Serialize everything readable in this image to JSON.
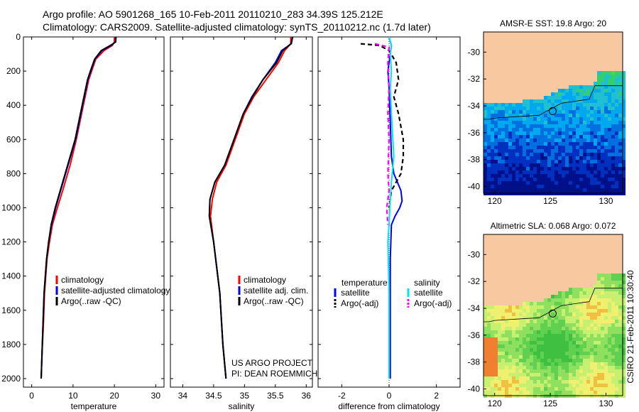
{
  "header": {
    "line1": "Argo profile: AO 5901268_165 10-Feb-2011 20110210_283 34.39S 125.212E",
    "line2": "Climatology: CARS2009. Satellite-adjusted climatology: synTS_20110212.nc (1.7d later)"
  },
  "side_label": "CSIRO 21-Feb-2011 10:30:40",
  "credit": {
    "line1": "US ARGO PROJECT",
    "line2": "PI: DEAN ROEMMICH"
  },
  "colors": {
    "climatology": "#ff0000",
    "satellite": "#0000ff",
    "argo": "#000000",
    "cyan": "#00e5ee",
    "magenta": "#ff00ff",
    "land": "#f8c8a0"
  },
  "chart_data": [
    {
      "id": "temperature",
      "type": "line",
      "xlabel": "temperature",
      "xlim": [
        -2,
        32
      ],
      "ylim": [
        0,
        2050
      ],
      "xticks": [
        0,
        10,
        20,
        30
      ],
      "yticks": [
        0,
        200,
        400,
        600,
        800,
        1000,
        1200,
        1400,
        1600,
        1800,
        2000
      ],
      "legend": [
        "climatology",
        "satellite-adjusted climatology",
        "Argo(..raw -QC)"
      ],
      "series": [
        {
          "name": "climatology",
          "color": "#ff0000",
          "x": [
            20.0,
            20.0,
            19.5,
            17.5,
            15.5,
            14.5,
            13.8,
            12.5,
            10.8,
            9.3,
            7.5,
            6.2,
            5.0,
            4.3,
            3.7,
            3.1,
            2.8,
            2.5,
            2.3
          ],
          "depth": [
            0,
            30,
            50,
            80,
            130,
            200,
            250,
            400,
            600,
            750,
            900,
            1000,
            1100,
            1200,
            1300,
            1500,
            1700,
            1850,
            2000
          ]
        },
        {
          "name": "satellite-adjusted climatology",
          "color": "#0000ff",
          "x": [
            20.3,
            20.2,
            19.2,
            17.0,
            15.3,
            14.3,
            13.6,
            12.3,
            10.6,
            8.8,
            7.0,
            5.8,
            4.8,
            4.1,
            3.6,
            3.0,
            2.7,
            2.5,
            2.3
          ],
          "depth": [
            0,
            30,
            50,
            80,
            130,
            200,
            250,
            400,
            600,
            750,
            900,
            1000,
            1100,
            1200,
            1300,
            1500,
            1700,
            1850,
            2000
          ]
        },
        {
          "name": "Argo(..raw -QC)",
          "color": "#000000",
          "x": [
            20.4,
            20.3,
            19.0,
            16.8,
            15.2,
            14.2,
            13.5,
            12.2,
            10.5,
            8.7,
            6.9,
            5.7,
            4.7,
            4.1,
            3.6,
            3.0,
            2.7,
            2.5,
            2.3
          ],
          "depth": [
            0,
            30,
            50,
            80,
            130,
            200,
            250,
            400,
            600,
            750,
            900,
            1000,
            1100,
            1200,
            1300,
            1500,
            1700,
            1850,
            2000
          ]
        }
      ]
    },
    {
      "id": "salinity",
      "type": "line",
      "xlabel": "salinity",
      "xlim": [
        33.8,
        36.1
      ],
      "ylim": [
        0,
        2050
      ],
      "xticks": [
        34,
        34.5,
        35,
        35.5,
        36
      ],
      "yticks": [
        0,
        200,
        400,
        600,
        800,
        1000,
        1200,
        1400,
        1600,
        1800,
        2000
      ],
      "legend": [
        "climatology",
        "satellite adj. clim.",
        "Argo(..raw -QC)"
      ],
      "series": [
        {
          "name": "climatology",
          "color": "#ff0000",
          "x": [
            35.75,
            35.75,
            35.65,
            35.55,
            35.35,
            35.15,
            35.0,
            34.85,
            34.7,
            34.55,
            34.48,
            34.45,
            34.5,
            34.6,
            34.65,
            34.7
          ],
          "depth": [
            0,
            40,
            80,
            150,
            250,
            350,
            450,
            600,
            750,
            850,
            950,
            1050,
            1200,
            1500,
            1800,
            2000
          ]
        },
        {
          "name": "satellite adj. clim.",
          "color": "#0000ff",
          "x": [
            35.78,
            35.76,
            35.6,
            35.5,
            35.3,
            35.12,
            34.98,
            34.83,
            34.68,
            34.52,
            34.44,
            34.43,
            34.5,
            34.6,
            34.65,
            34.7
          ],
          "depth": [
            0,
            40,
            80,
            150,
            250,
            350,
            450,
            600,
            750,
            850,
            950,
            1050,
            1200,
            1500,
            1800,
            2000
          ]
        },
        {
          "name": "Argo(..raw -QC)",
          "color": "#000000",
          "x": [
            35.78,
            35.75,
            35.62,
            35.52,
            35.3,
            35.13,
            34.98,
            34.83,
            34.68,
            34.52,
            34.44,
            34.43,
            34.5,
            34.6,
            34.65,
            34.7
          ],
          "depth": [
            0,
            40,
            80,
            150,
            250,
            350,
            450,
            600,
            750,
            850,
            950,
            1050,
            1200,
            1500,
            1800,
            2000
          ]
        }
      ]
    },
    {
      "id": "difference",
      "type": "line",
      "xlabel": "difference from climatology",
      "xlim": [
        -3,
        3
      ],
      "ylim": [
        0,
        2050
      ],
      "xticks": [
        -2,
        0,
        2
      ],
      "yticks": [
        0,
        200,
        400,
        600,
        800,
        1000,
        1200,
        1400,
        1600,
        1800,
        2000
      ],
      "legend_headers": [
        "temperature",
        "salinity"
      ],
      "legend": [
        "satellite",
        "Argo(-adj)",
        "satellite",
        "Argo(-adj)"
      ],
      "series": [
        {
          "name": "temperature satellite",
          "color": "#0000ff",
          "x": [
            0.0,
            0.1,
            0.05,
            -0.05,
            0.0,
            0.05,
            0.1,
            0.2,
            0.35,
            0.5,
            0.55,
            0.45,
            0.25,
            0.1,
            0.05,
            0.05,
            0.05
          ],
          "depth": [
            0,
            50,
            100,
            200,
            300,
            500,
            700,
            800,
            850,
            900,
            960,
            1000,
            1050,
            1100,
            1300,
            1700,
            2000
          ]
        },
        {
          "name": "temperature Argo(-adj)",
          "color": "#000000",
          "dashed": true,
          "x": [
            -1.2,
            -0.4,
            0.0,
            0.3,
            0.4,
            0.2,
            0.4,
            0.6,
            0.6,
            0.5,
            0.3,
            0.1,
            0.05,
            0.0
          ],
          "depth": [
            40,
            50,
            80,
            150,
            250,
            350,
            450,
            600,
            700,
            800,
            850,
            900,
            950,
            1000
          ]
        },
        {
          "name": "salinity satellite",
          "color": "#00e5ee",
          "x": [
            0.0,
            0.1,
            0.05,
            0.1,
            0.05,
            0.1,
            0.2,
            0.1,
            0.05,
            0.0,
            -0.05,
            0.0,
            0.0,
            0.0
          ],
          "depth": [
            0,
            50,
            100,
            200,
            300,
            450,
            700,
            850,
            950,
            1100,
            1200,
            1500,
            1800,
            2000
          ]
        },
        {
          "name": "salinity Argo(-adj)",
          "color": "#ff00ff",
          "dashed": true,
          "x": [
            -0.6,
            0.0,
            -0.05,
            0.0,
            -0.05,
            0.0,
            -0.05,
            0.0,
            -0.1,
            -0.05
          ],
          "depth": [
            40,
            60,
            150,
            300,
            450,
            600,
            800,
            900,
            1000,
            1100
          ]
        }
      ]
    },
    {
      "id": "sst_map",
      "type": "heatmap",
      "title": "AMSR-E SST: 19.8 Argo: 20",
      "xlim": [
        119,
        131.5
      ],
      "ylim": [
        -40.5,
        -28.5
      ],
      "xticks": [
        120,
        125,
        130
      ],
      "yticks": [
        -30,
        -32,
        -34,
        -36,
        -38,
        -40
      ],
      "argo_position": [
        125.212,
        -34.39
      ]
    },
    {
      "id": "sla_map",
      "type": "heatmap",
      "title": "Altimetric SLA: 0.068 Argo: 0.072",
      "xlim": [
        119,
        131.5
      ],
      "ylim": [
        -40.5,
        -28.5
      ],
      "xticks": [
        120,
        125,
        130
      ],
      "yticks": [
        -30,
        -32,
        -34,
        -36,
        -38,
        -40
      ],
      "argo_position": [
        125.212,
        -34.39
      ]
    }
  ]
}
